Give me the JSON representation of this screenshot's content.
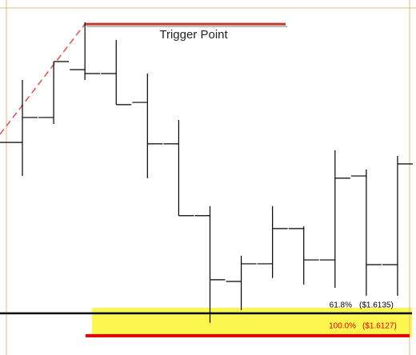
{
  "chart_data": {
    "type": "ohlc",
    "categories": [
      null,
      null,
      null,
      null,
      null,
      null,
      null,
      null,
      null,
      null,
      null,
      null,
      null
    ],
    "open": [
      1.61961,
      1.6205,
      1.62221,
      1.62207,
      1.62104,
      1.61956,
      1.61699,
      1.61464,
      1.61527,
      1.61653,
      1.61541,
      1.61841,
      1.61524
    ],
    "high": [
      1.62184,
      1.6225,
      1.6239,
      1.62327,
      1.62207,
      1.62041,
      1.61733,
      1.61556,
      1.61733,
      1.61661,
      1.61933,
      1.61864,
      1.61913
    ],
    "low": [
      1.61841,
      1.62027,
      1.62184,
      1.62096,
      1.61833,
      1.61699,
      1.61316,
      1.61361,
      1.61476,
      1.61453,
      1.61441,
      1.61413,
      1.61413
    ],
    "close": [
      1.6205,
      1.6225,
      1.62207,
      1.62096,
      1.61956,
      1.61699,
      1.6147,
      1.61527,
      1.61653,
      1.61541,
      1.61833,
      1.61524,
      1.61884
    ],
    "color": "#000000",
    "ylim": [
      1.61201,
      1.6247
    ],
    "trendline": {
      "values": [
        1.6199,
        1.62384
      ],
      "color": "#d9534f"
    },
    "trigger": {
      "label": "Trigger Point",
      "value": 1.62384,
      "color": "#c0392b"
    },
    "levels": [
      {
        "label": "61.8%",
        "price_label": "($1.6135)",
        "value": 1.6135,
        "color": "#000000"
      },
      {
        "label": "100.0%",
        "price_label": "($1.6127)",
        "value": 1.6127,
        "color": "#e00000"
      }
    ]
  }
}
